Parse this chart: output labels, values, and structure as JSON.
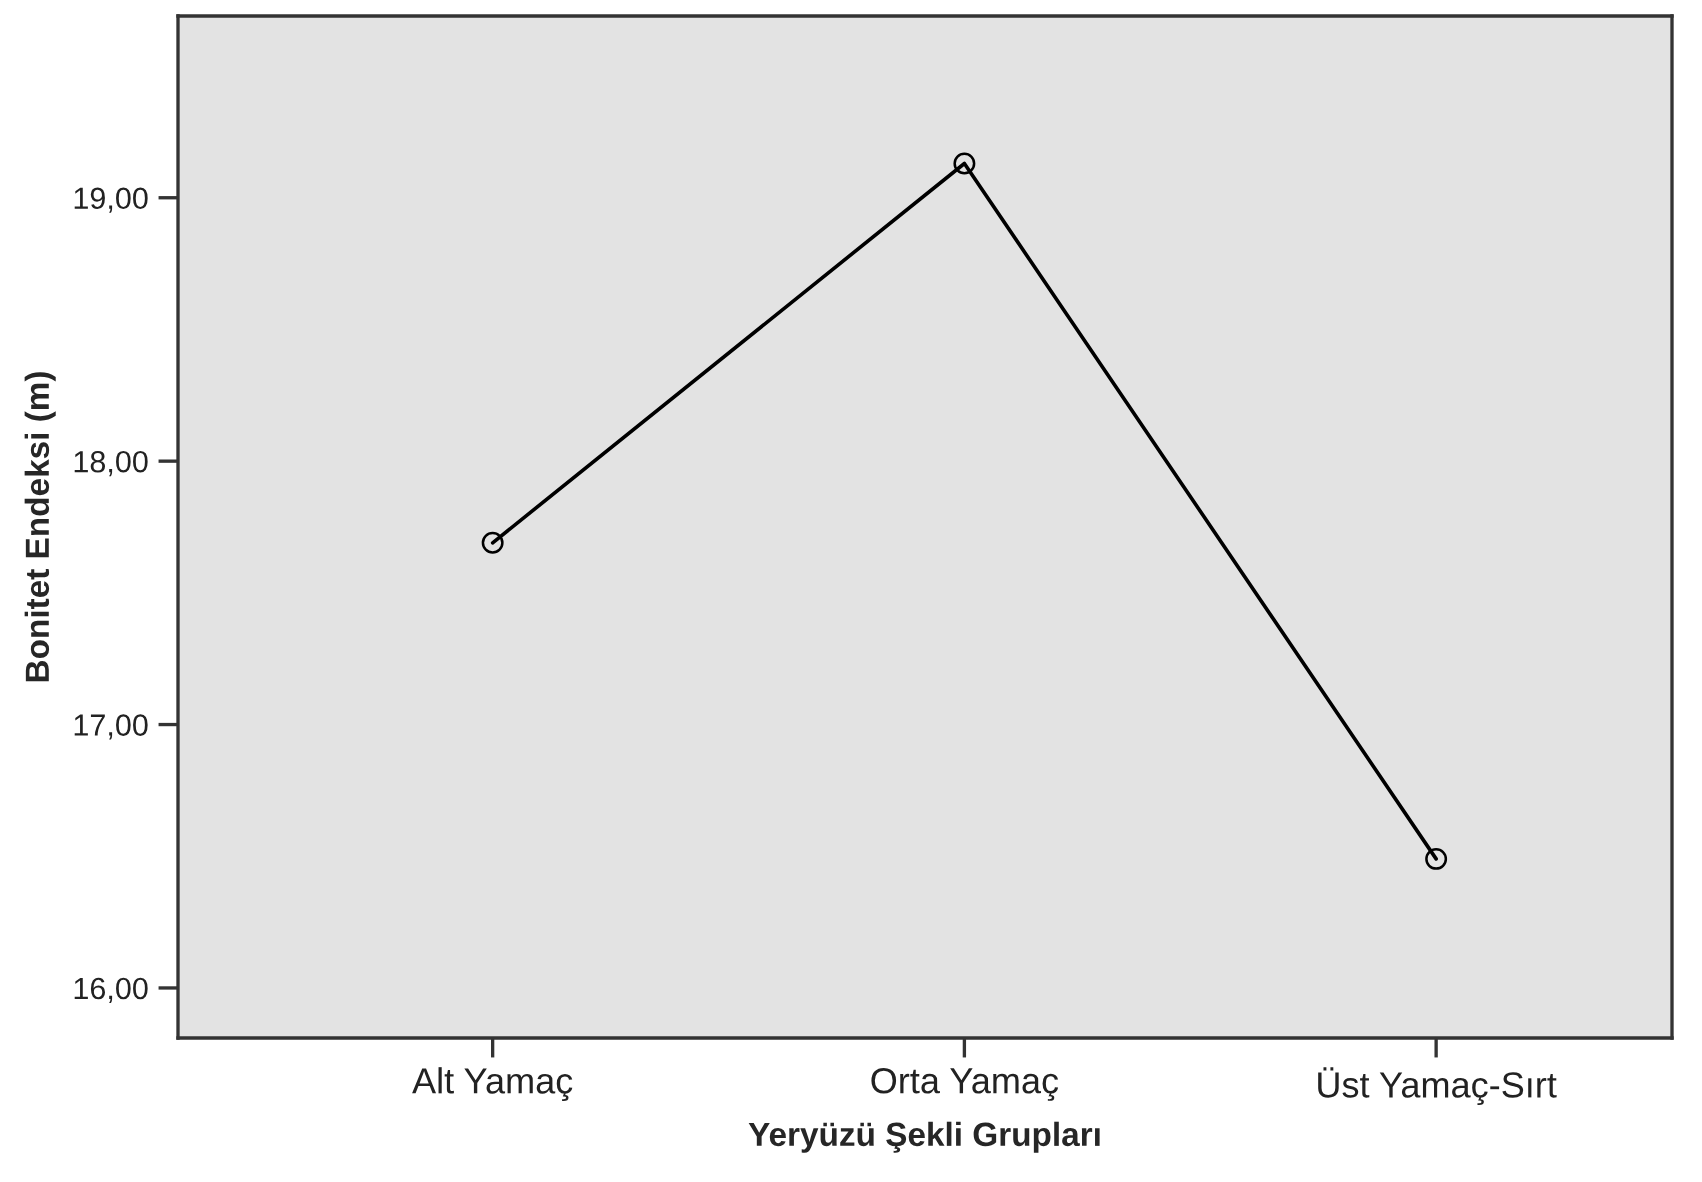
{
  "chart_data": {
    "type": "line",
    "xlabel": "Yeryüzü Şekli Grupları",
    "ylabel": "Bonitet Endeksi (m)",
    "categories": [
      "Alt Yamaç",
      "Orta Yamaç",
      "Üst Yamaç-Sırt"
    ],
    "series": [
      {
        "color": "#000000",
        "values": [
          17.69,
          19.13,
          16.49
        ]
      }
    ],
    "ylim": [
      15.81,
      19.69
    ],
    "yticks": [
      {
        "value": 16,
        "label": "16,00"
      },
      {
        "value": 17,
        "label": "17,00"
      },
      {
        "value": 18,
        "label": "18,00"
      },
      {
        "value": 19,
        "label": "19,00"
      }
    ],
    "marker": "circle",
    "line_style": "solid"
  }
}
